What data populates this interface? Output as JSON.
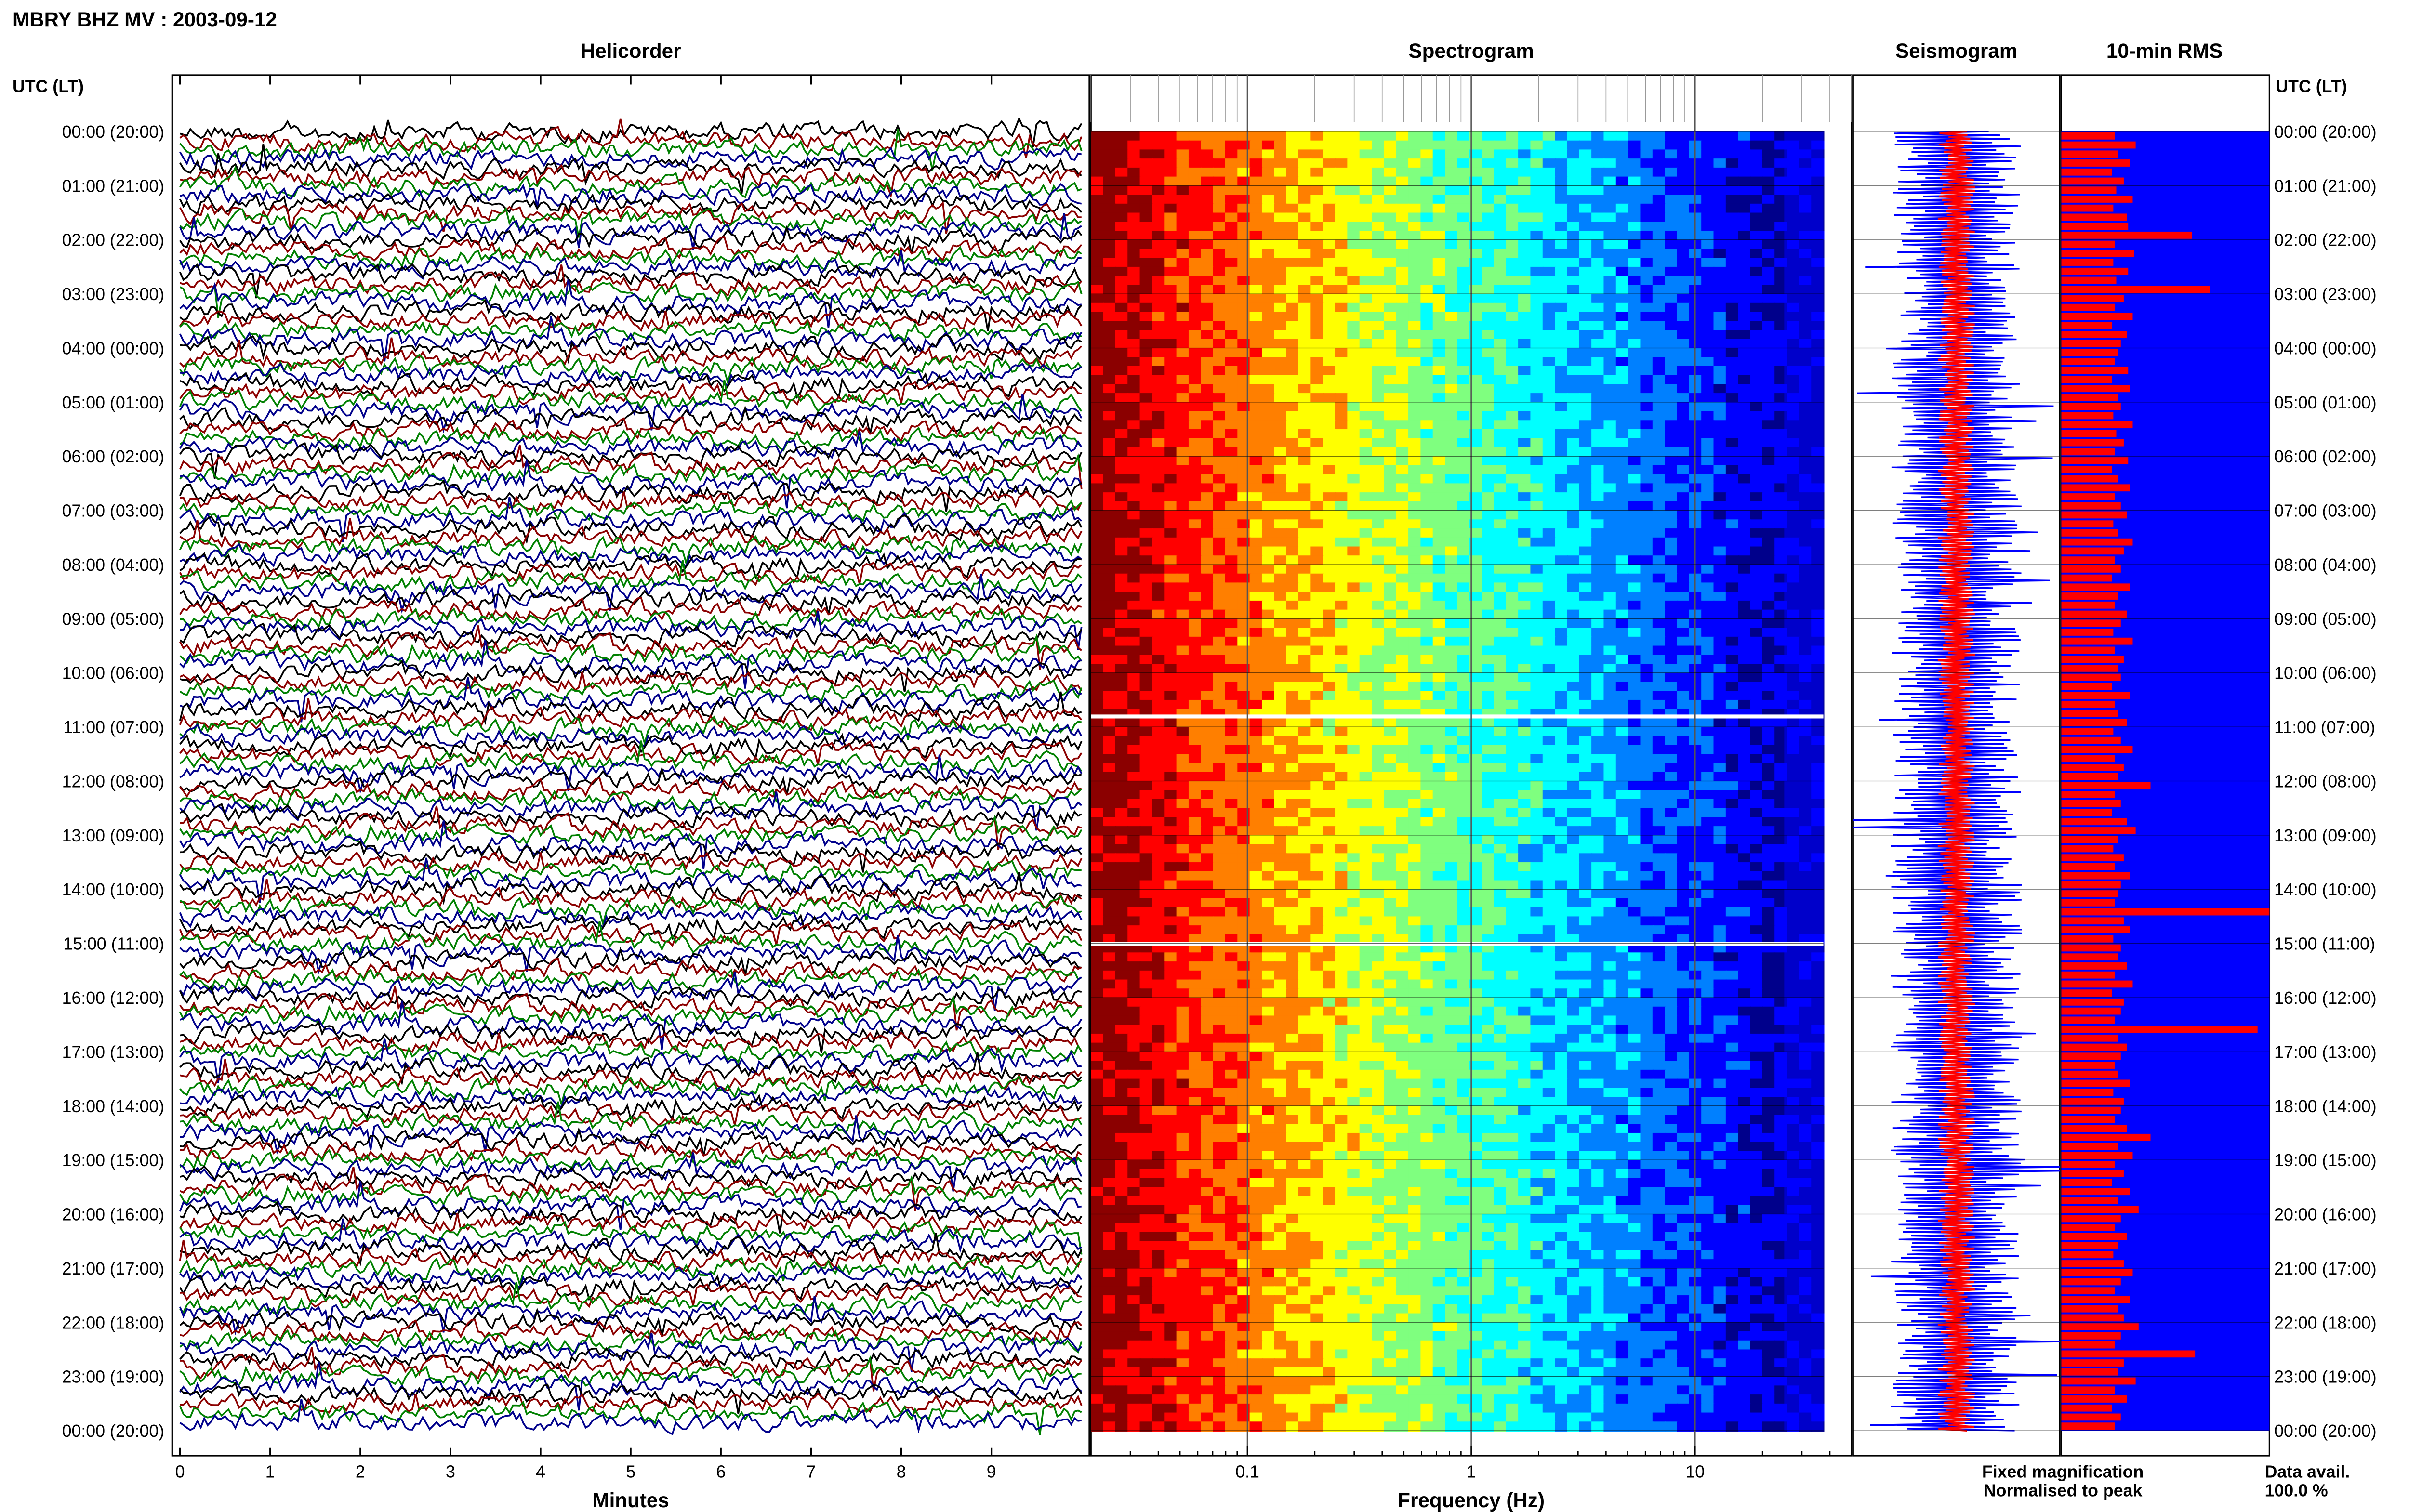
{
  "page_title": "MBRY BHZ MV : 2003-09-12",
  "time_axis": {
    "label": "UTC (LT)",
    "ticks": [
      "00:00 (20:00)",
      "01:00 (21:00)",
      "02:00 (22:00)",
      "03:00 (23:00)",
      "04:00 (00:00)",
      "05:00 (01:00)",
      "06:00 (02:00)",
      "07:00 (03:00)",
      "08:00 (04:00)",
      "09:00 (05:00)",
      "10:00 (06:00)",
      "11:00 (07:00)",
      "12:00 (08:00)",
      "13:00 (09:00)",
      "14:00 (10:00)",
      "15:00 (11:00)",
      "16:00 (12:00)",
      "17:00 (13:00)",
      "18:00 (14:00)",
      "19:00 (15:00)",
      "20:00 (16:00)",
      "21:00 (17:00)",
      "22:00 (18:00)",
      "23:00 (19:00)",
      "00:00 (20:00)"
    ]
  },
  "panels": {
    "helicorder": {
      "title": "Helicorder",
      "xlabel": "Minutes",
      "xticks": [
        "0",
        "1",
        "2",
        "3",
        "4",
        "5",
        "6",
        "7",
        "8",
        "9"
      ]
    },
    "spectrogram": {
      "title": "Spectrogram",
      "xlabel": "Frequency (Hz)",
      "xticks": [
        "0.1",
        "1",
        "10"
      ]
    },
    "seismogram": {
      "title": "Seismogram"
    },
    "rms": {
      "title": "10-min RMS"
    }
  },
  "legend": {
    "fixed": "Fixed magnification",
    "normalised": "Normalised to peak",
    "fixed_color": "#0000ff",
    "normalised_color": "#ff0000"
  },
  "data_avail": {
    "label": "Data avail.",
    "value": "100.0 %"
  },
  "chart_data": [
    {
      "type": "line",
      "panel": "Helicorder",
      "xlabel": "Minutes",
      "x_range": [
        0,
        10
      ],
      "ylabel": "UTC (LT)",
      "y_range_hours": [
        0,
        24
      ],
      "trace_count": 144,
      "trace_interval_minutes": 10,
      "trace_colors": [
        "#000000",
        "#8b0000",
        "#008000",
        "#00008b"
      ]
    },
    {
      "type": "heatmap",
      "panel": "Spectrogram",
      "xlabel": "Frequency (Hz)",
      "x_scale": "log",
      "x_range": [
        0.02,
        50
      ],
      "gaps_utc_hours": [
        10.8,
        15.0
      ],
      "colormap": [
        "#8b0000",
        "#ff0000",
        "#ff7f00",
        "#ffff00",
        "#7fff7f",
        "#00ffff",
        "#0080ff",
        "#0000ff",
        "#00008b"
      ]
    },
    {
      "type": "line",
      "panel": "Seismogram",
      "series": [
        {
          "name": "Fixed magnification",
          "color": "#0000ff"
        },
        {
          "name": "Normalised to peak",
          "color": "#ff0000"
        }
      ]
    },
    {
      "type": "bar",
      "panel": "10-min RMS",
      "orientation": "horizontal",
      "intervals": 144,
      "bar_color": "#ff0000",
      "background_color": "#0000ff",
      "values": [
        0.36,
        0.5,
        0.38,
        0.46,
        0.34,
        0.42,
        0.37,
        0.48,
        0.35,
        0.44,
        0.45,
        0.88,
        0.36,
        0.49,
        0.35,
        0.45,
        0.37,
        1.0,
        0.42,
        0.36,
        0.48,
        0.34,
        0.44,
        0.4,
        0.38,
        0.36,
        0.45,
        0.34,
        0.46,
        0.38,
        0.4,
        0.35,
        0.48,
        0.37,
        0.42,
        0.36,
        0.45,
        0.34,
        0.38,
        0.46,
        0.36,
        0.4,
        0.44,
        0.35,
        0.38,
        0.48,
        0.42,
        0.36,
        0.4,
        0.34,
        0.46,
        0.38,
        0.36,
        0.44,
        0.4,
        0.35,
        0.48,
        0.36,
        0.42,
        0.38,
        0.4,
        0.34,
        0.46,
        0.36,
        0.38,
        0.44,
        0.35,
        0.4,
        0.48,
        0.36,
        0.42,
        0.38,
        0.6,
        0.36,
        0.4,
        0.34,
        0.44,
        0.5,
        0.38,
        0.35,
        0.42,
        0.36,
        0.46,
        0.4,
        0.38,
        0.36,
        1.4,
        0.42,
        0.46,
        0.35,
        0.4,
        0.38,
        0.44,
        0.36,
        0.48,
        0.34,
        0.42,
        0.4,
        0.36,
        1.32,
        0.38,
        0.44,
        0.4,
        0.36,
        0.38,
        0.46,
        0.35,
        0.42,
        0.4,
        0.36,
        0.44,
        0.6,
        0.38,
        0.48,
        0.36,
        0.42,
        0.34,
        0.46,
        0.38,
        0.52,
        0.4,
        0.36,
        0.44,
        0.38,
        0.35,
        0.42,
        0.48,
        0.4,
        0.36,
        0.46,
        0.38,
        0.42,
        0.52,
        0.4,
        0.36,
        0.9,
        0.42,
        0.38,
        0.5,
        0.36,
        0.44,
        0.34,
        0.4,
        0.36
      ]
    }
  ]
}
